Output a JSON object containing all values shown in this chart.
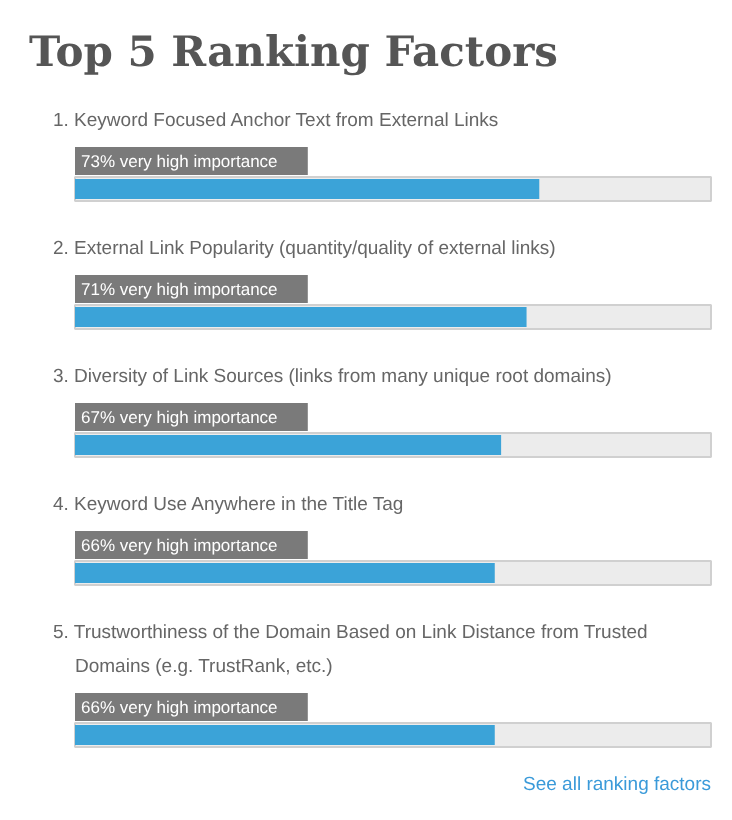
{
  "chart_data": {
    "type": "bar",
    "orientation": "horizontal",
    "title": "Top 5 Ranking Factors",
    "categories": [
      "1. Keyword Focused Anchor Text from External Links",
      "2. External Link Popularity (quantity/quality of external links)",
      "3. Diversity of Link Sources (links from many unique root domains)",
      "4. Keyword Use Anywhere in the Title Tag",
      "5. Trustworthiness of the Domain Based on Link Distance from Trusted Domains (e.g. TrustRank, etc.)"
    ],
    "values": [
      73,
      71,
      67,
      66,
      66
    ],
    "value_labels": [
      "73% very high importance",
      "71% very high importance",
      "67% very high importance",
      "66% very high importance",
      "66% very high importance"
    ],
    "color": "#3ba3d8",
    "xlim": [
      0,
      100
    ],
    "grid": false,
    "annotations": [
      "See all ranking factors"
    ]
  }
}
